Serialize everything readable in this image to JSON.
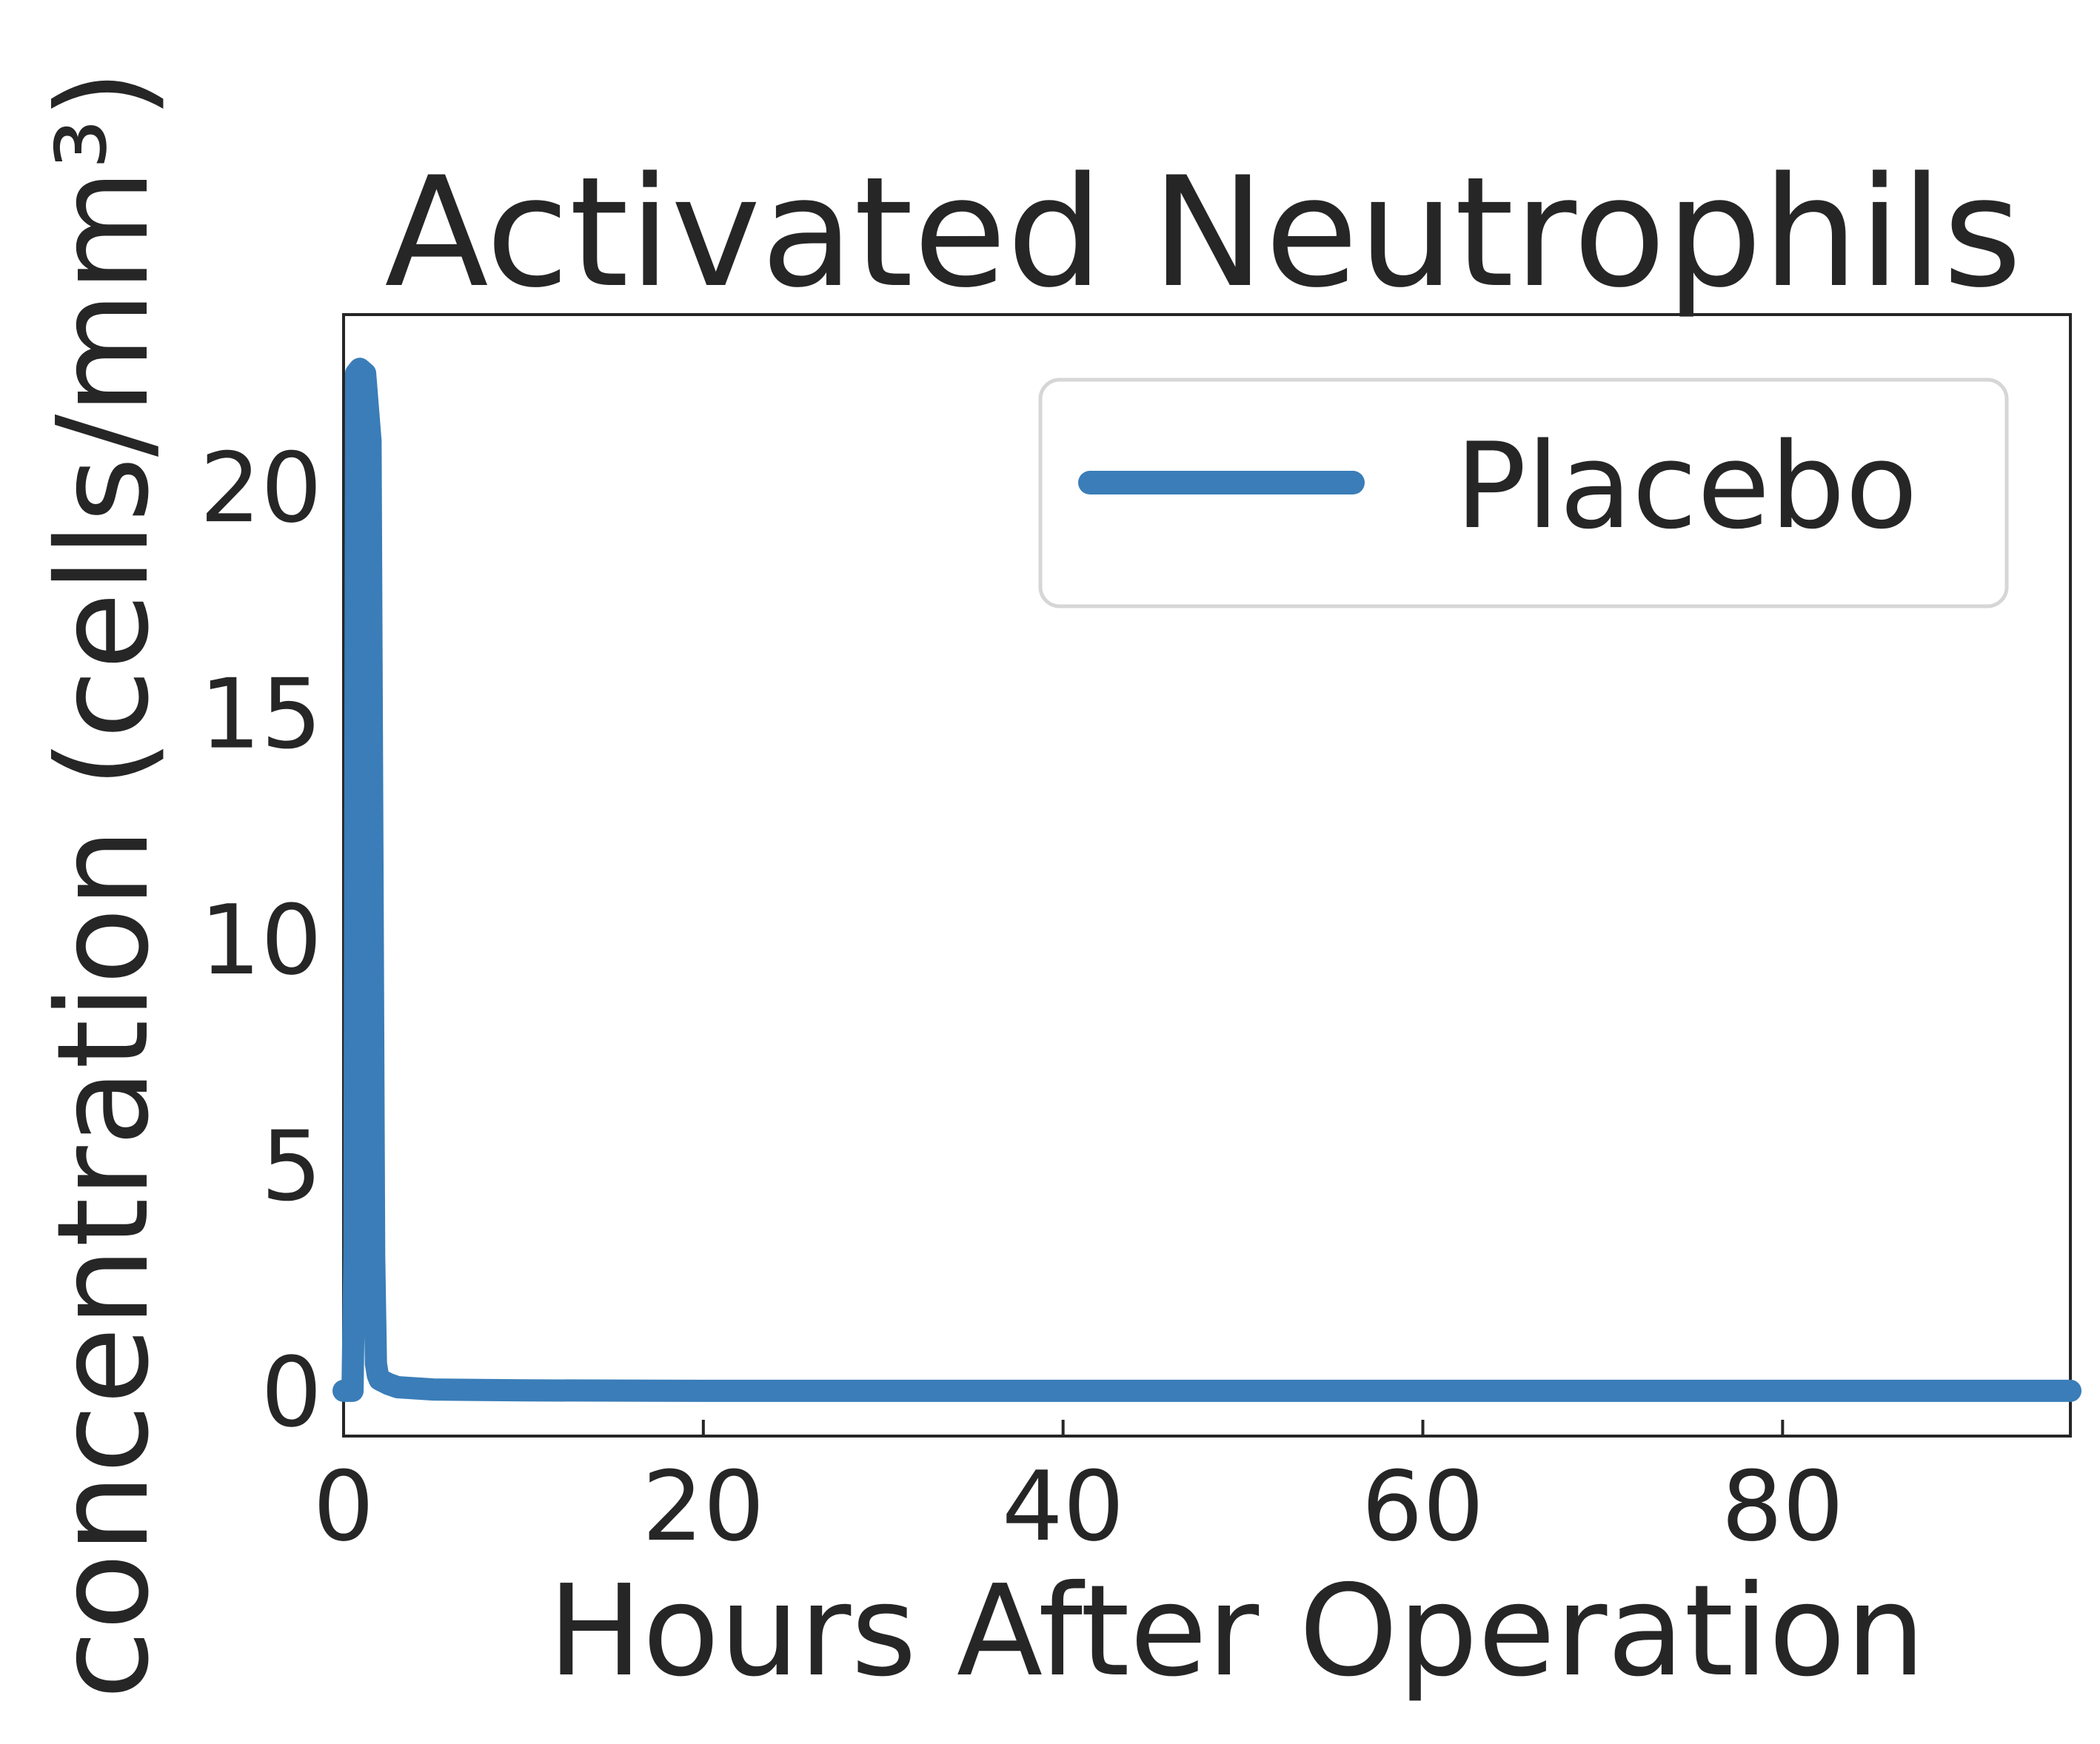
{
  "chart_data": {
    "type": "line",
    "title": "Activated Neutrophils",
    "xlabel": "Hours After Operation",
    "ylabel": "concentration (cells/mm³)",
    "xlim": [
      0,
      96
    ],
    "ylim": [
      -1,
      23.8
    ],
    "xticks": [
      0,
      20,
      40,
      60,
      80
    ],
    "yticks": [
      0,
      5,
      10,
      15,
      20
    ],
    "xtick_labels": [
      "0",
      "20",
      "40",
      "60",
      "80"
    ],
    "ytick_labels": [
      "0",
      "5",
      "10",
      "15",
      "20"
    ],
    "grid": false,
    "legend_position": "top-right",
    "series": [
      {
        "name": "Placebo",
        "color": "#3a7db8",
        "x": [
          0,
          0.3,
          0.5,
          0.6,
          0.7,
          0.9,
          1.2,
          1.5,
          1.6,
          1.7,
          1.8,
          1.9,
          2.0,
          2.5,
          3,
          5,
          10,
          20,
          40,
          60,
          80,
          96
        ],
        "y": [
          0,
          0,
          0,
          3,
          22.5,
          22.6,
          22.5,
          21,
          12,
          3,
          0.6,
          0.35,
          0.25,
          0.15,
          0.08,
          0.03,
          0.01,
          0,
          0,
          0,
          0,
          0
        ]
      }
    ]
  }
}
